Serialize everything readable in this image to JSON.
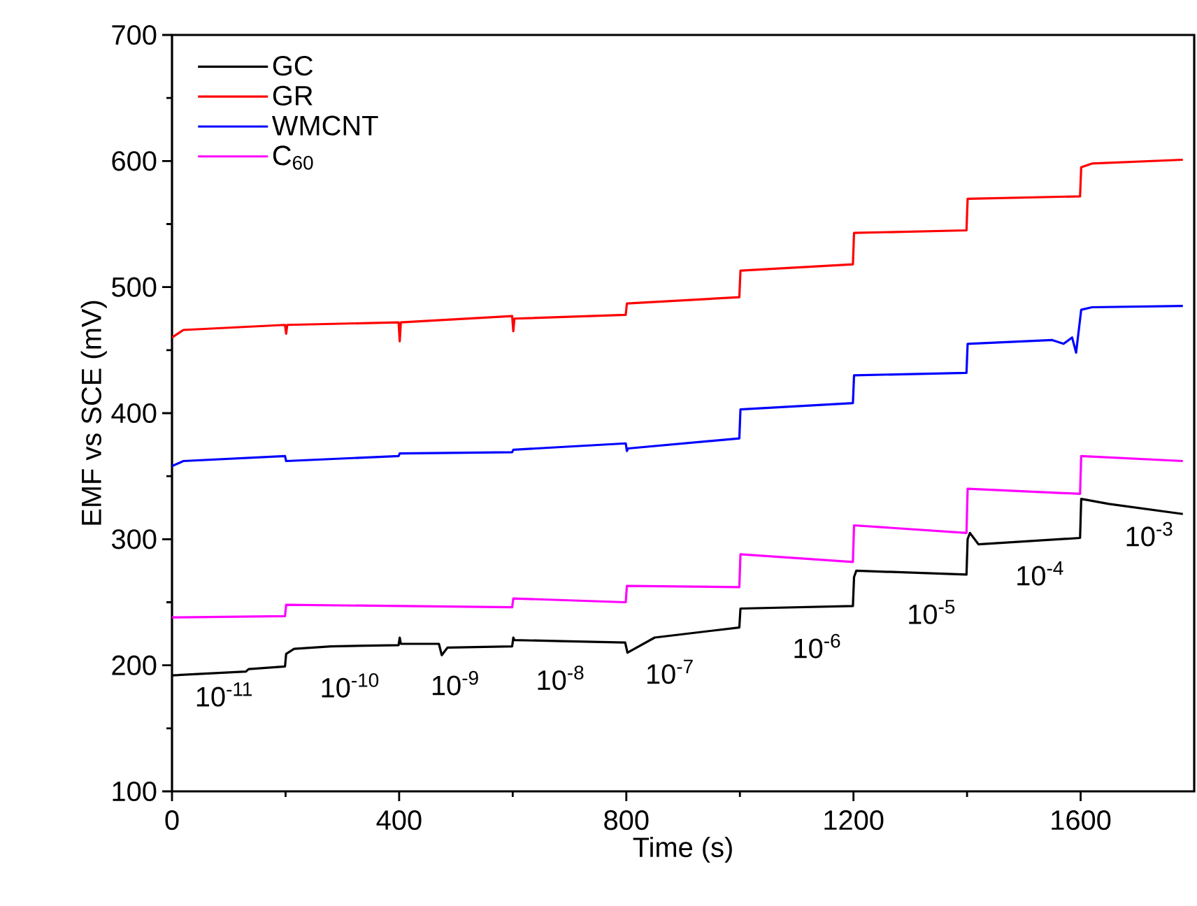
{
  "chart_data": {
    "type": "line",
    "xlabel": "Time (s)",
    "ylabel": "EMF vs SCE (mV)",
    "xlim": [
      0,
      1800
    ],
    "ylim": [
      100,
      700
    ],
    "xticks": [
      0,
      {
        "value": 200,
        "label": null
      },
      400,
      {
        "value": 600,
        "label": null
      },
      800,
      {
        "value": 1000,
        "label": null
      },
      1200,
      {
        "value": 1400,
        "label": null
      },
      1600
    ],
    "yticks": [
      100,
      {
        "value": 150,
        "label": null
      },
      200,
      {
        "value": 250,
        "label": null
      },
      300,
      {
        "value": 350,
        "label": null
      },
      400,
      {
        "value": 450,
        "label": null
      },
      500,
      {
        "value": 550,
        "label": null
      },
      600,
      {
        "value": 650,
        "label": null
      },
      700
    ],
    "legend": "top left",
    "line_style": "solid",
    "marker": "none",
    "series": [
      {
        "name": "GC",
        "color": "#000000",
        "x": [
          0,
          130,
          135,
          199,
          201,
          215,
          280,
          399,
          401,
          403,
          470,
          475,
          485,
          599,
          601,
          603,
          700,
          798,
          802,
          850,
          999,
          1001,
          1199,
          1201,
          1205,
          1399,
          1401,
          1405,
          1420,
          1599,
          1601,
          1650,
          1780
        ],
        "values": [
          192,
          195,
          197,
          199,
          209,
          213,
          215,
          216,
          222,
          217,
          217,
          208,
          214,
          215,
          222,
          220,
          219,
          218,
          210,
          222,
          230,
          245,
          247,
          270,
          275,
          272,
          300,
          305,
          296,
          301,
          332,
          328,
          320
        ]
      },
      {
        "name": "GR",
        "color": "#ff0000",
        "x": [
          0,
          20,
          199,
          201,
          203,
          399,
          401,
          403,
          599,
          601,
          603,
          799,
          801,
          999,
          1001,
          1199,
          1201,
          1399,
          1401,
          1599,
          1601,
          1620,
          1780
        ],
        "values": [
          460,
          466,
          470,
          463,
          470,
          472,
          457,
          472,
          477,
          465,
          475,
          478,
          487,
          492,
          513,
          518,
          543,
          545,
          570,
          572,
          595,
          598,
          601
        ]
      },
      {
        "name": "WMCNT",
        "color": "#0000ff",
        "x": [
          0,
          20,
          199,
          201,
          399,
          401,
          599,
          601,
          799,
          801,
          803,
          999,
          1001,
          1199,
          1201,
          1399,
          1401,
          1550,
          1570,
          1585,
          1592,
          1601,
          1620,
          1780
        ],
        "values": [
          358,
          362,
          366,
          362,
          366,
          368,
          369,
          371,
          376,
          370,
          372,
          380,
          403,
          408,
          430,
          432,
          455,
          458,
          455,
          460,
          448,
          482,
          484,
          485
        ]
      },
      {
        "name": "C$_{60}$",
        "color": "#ff00ff",
        "x": [
          0,
          199,
          201,
          400,
          599,
          601,
          799,
          801,
          999,
          1001,
          1199,
          1201,
          1399,
          1401,
          1599,
          1601,
          1780
        ],
        "values": [
          238,
          239,
          248,
          247,
          246,
          253,
          250,
          263,
          262,
          288,
          282,
          311,
          305,
          340,
          336,
          366,
          362
        ]
      }
    ],
    "annotations": [
      "10$^{-11}$",
      "10$^{-10}$",
      "10$^{-9}$",
      "10$^{-8}$",
      "10$^{-7}$",
      "10$^{-6}$",
      "10$^{-5}$",
      "10$^{-4}$",
      "10$^{-3}$"
    ]
  }
}
